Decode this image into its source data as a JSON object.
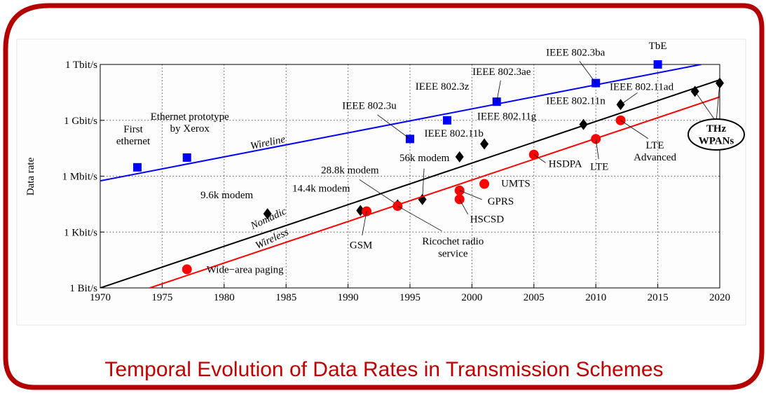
{
  "chart_data": {
    "type": "scatter",
    "title": "Temporal Evolution of Data Rates in Transmission Schemes",
    "y_label": "Data rate",
    "xlim": [
      1970,
      2020
    ],
    "xticks": [
      1970,
      1975,
      1980,
      1985,
      1990,
      1995,
      2000,
      2005,
      2010,
      2015,
      2020
    ],
    "ylim": [
      1,
      1000000000000
    ],
    "yticks": [
      {
        "value": 1,
        "label": "1 Bit/s"
      },
      {
        "value": 1000,
        "label": "1 Kbit/s"
      },
      {
        "value": 1000000,
        "label": "1 Mbit/s"
      },
      {
        "value": 1000000000,
        "label": "1 Gbit/s"
      },
      {
        "value": 1000000000000,
        "label": "1 Tbit/s"
      }
    ],
    "y_scale": "log",
    "grid": true,
    "series": [
      {
        "name": "Wireline",
        "color": "#0000ff",
        "marker": "square",
        "x": [
          1973,
          1977,
          1995,
          1998,
          2002,
          2010,
          2015
        ],
        "values": [
          3000000,
          10000000,
          100000000,
          1000000000,
          10000000000,
          100000000000,
          1000000000000
        ],
        "labels": [
          "First\nethernet",
          "Ethernet prototype\nby Xerox",
          "IEEE 802.3u",
          "IEEE 802.3z",
          "IEEE 802.3ae",
          "IEEE 802.3ba",
          "TbE"
        ],
        "trend": {
          "x": [
            1970,
            2018.5
          ],
          "values": [
            560000,
            1000000000000
          ]
        }
      },
      {
        "name": "Nomadic",
        "color": "#000000",
        "marker": "diamond",
        "x": [
          1983.5,
          1991,
          1994,
          1996,
          1999,
          2001,
          2009,
          2012,
          2018,
          2020
        ],
        "values": [
          9600,
          14400,
          28800,
          56000,
          11000000,
          54000000,
          600000000,
          7000000000,
          36000000000,
          100000000000
        ],
        "labels": [
          "9.6k modem",
          "14.4k modem",
          "28.8k modem",
          "56k modem",
          "IEEE 802.11b",
          "IEEE 802.11g",
          "IEEE 802.11n",
          "IEEE 802.11ad",
          null,
          null
        ],
        "trend": {
          "x": [
            1970,
            2020
          ],
          "values": [
            1,
            150000000000
          ]
        }
      },
      {
        "name": "Wireless",
        "color": "#ff0000",
        "marker": "circle",
        "x": [
          1977,
          1991.5,
          1994,
          1999,
          1999,
          2001,
          2005,
          2010,
          2012
        ],
        "values": [
          10,
          13000,
          25000,
          57600,
          171000,
          384000,
          14400000,
          100000000,
          1000000000
        ],
        "labels": [
          "Wide−area paging",
          "GSM",
          "Ricochet radio\nservice",
          "HSCSD",
          "GPRS",
          "UMTS",
          "HSDPA",
          "LTE",
          "LTE\nAdvanced"
        ],
        "trend": {
          "x": [
            1974,
            2020
          ],
          "values": [
            1,
            18000000000
          ]
        }
      }
    ],
    "annotations": [
      {
        "text": "THz\nWPANs"
      }
    ]
  }
}
